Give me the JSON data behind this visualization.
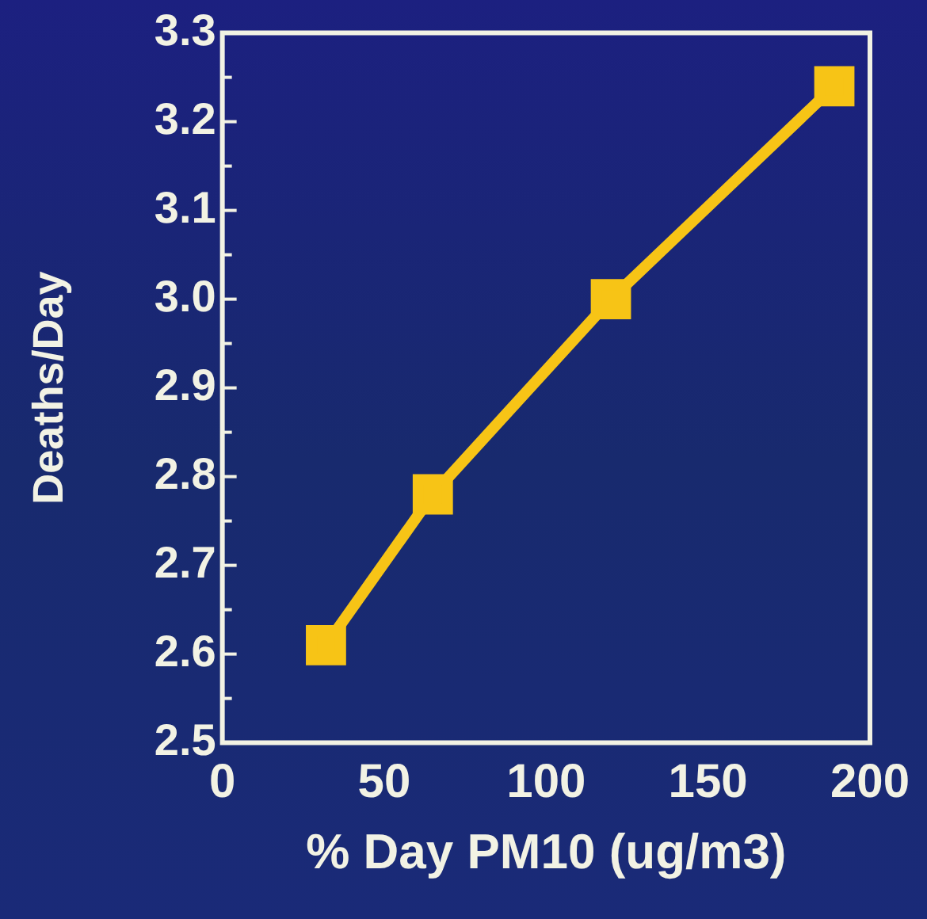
{
  "chart_data": {
    "type": "line",
    "xlabel": "% Day PM10 (ug/m3)",
    "ylabel": "Deaths/Day",
    "x": [
      32,
      65,
      120,
      189
    ],
    "series": [
      {
        "color": "#f7c416",
        "values": [
          2.61,
          2.78,
          3.0,
          3.24
        ]
      }
    ],
    "xlim": [
      0,
      200
    ],
    "xticks": [
      0,
      50,
      100,
      150,
      200
    ],
    "ylim": [
      2.5,
      3.3
    ],
    "yticks": [
      2.5,
      {
        "value": 2.55,
        "label": null
      },
      2.6,
      {
        "value": 2.65,
        "label": null
      },
      2.7,
      {
        "value": 2.75,
        "label": null
      },
      2.8,
      {
        "value": 2.85,
        "label": null
      },
      2.9,
      {
        "value": 2.95,
        "label": null
      },
      {
        "value": 3.0,
        "label": "3.0"
      },
      {
        "value": 3.05,
        "label": null
      },
      3.1,
      {
        "value": 3.15,
        "label": null
      },
      3.2,
      {
        "value": 3.25,
        "label": null
      },
      3.3
    ],
    "grid": false,
    "legend": false,
    "marker": "square",
    "line_style": "solid"
  }
}
